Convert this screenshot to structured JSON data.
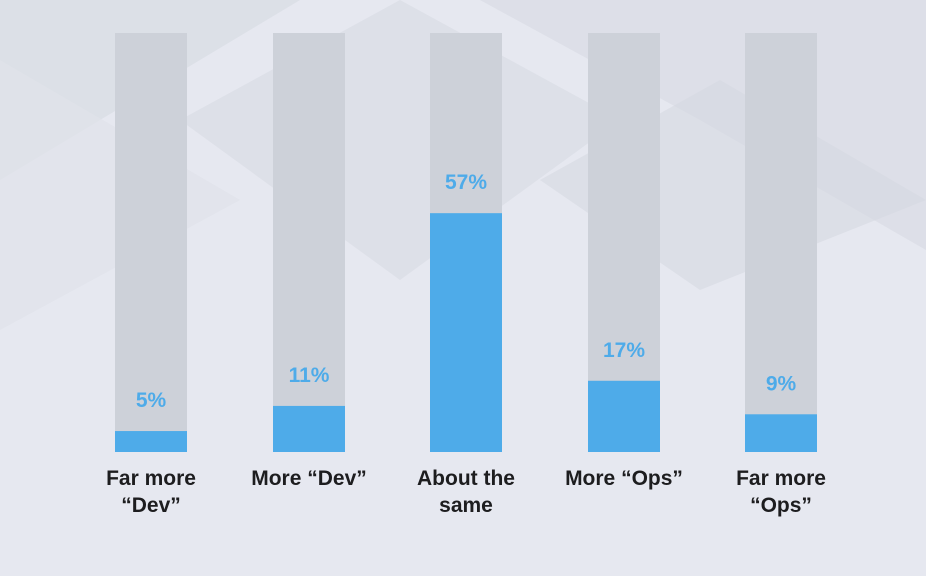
{
  "chart_data": {
    "type": "bar",
    "categories": [
      [
        "Far more",
        "“Dev”"
      ],
      [
        "More “Dev”"
      ],
      [
        "About the",
        "same"
      ],
      [
        "More “Ops”"
      ],
      [
        "Far more",
        "“Ops”"
      ]
    ],
    "values": [
      5,
      11,
      57,
      17,
      9
    ],
    "value_labels": [
      "5%",
      "11%",
      "57%",
      "17%",
      "9%"
    ],
    "ylim": [
      0,
      100
    ],
    "title": "",
    "xlabel": "",
    "ylabel": "",
    "grid": false,
    "colors": {
      "bar": "#4eabe9",
      "track": "#cdd1d9",
      "value_label": "#4eabe9",
      "category_label": "#1d1d1f",
      "background": "#e6e8f0"
    }
  }
}
